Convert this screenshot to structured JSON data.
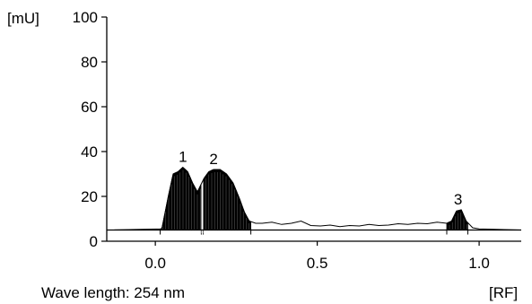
{
  "chart_data": {
    "type": "line",
    "y_unit": "[mU]",
    "x_unit": "[RF]",
    "caption": "Wave length: 254 nm",
    "xlim": [
      -0.15,
      1.13
    ],
    "ylim": [
      0,
      100
    ],
    "x_ticks": [
      {
        "value": 0.0,
        "label": "0.0"
      },
      {
        "value": 0.5,
        "label": "0.5"
      },
      {
        "value": 1.0,
        "label": "1.0"
      }
    ],
    "y_ticks": [
      {
        "value": 0,
        "label": "0"
      },
      {
        "value": 20,
        "label": "20"
      },
      {
        "value": 40,
        "label": "40"
      },
      {
        "value": 60,
        "label": "60"
      },
      {
        "value": 80,
        "label": "80"
      },
      {
        "value": 100,
        "label": "100"
      }
    ],
    "baseline": 5,
    "series": [
      {
        "x": [
          -0.15,
          0.02,
          0.04,
          0.055,
          0.07,
          0.085,
          0.1,
          0.115,
          0.13,
          0.14,
          0.15,
          0.165,
          0.18,
          0.2,
          0.22,
          0.24,
          0.26,
          0.275,
          0.29,
          0.31,
          0.33,
          0.36,
          0.39,
          0.42,
          0.45,
          0.48,
          0.51,
          0.54,
          0.57,
          0.6,
          0.63,
          0.66,
          0.69,
          0.72,
          0.75,
          0.78,
          0.81,
          0.84,
          0.87,
          0.9,
          0.915,
          0.93,
          0.945,
          0.96,
          0.98,
          1.0,
          1.13
        ],
        "y": [
          5,
          5.5,
          20,
          30,
          31,
          33,
          31,
          26,
          22,
          25,
          28,
          31,
          32,
          32,
          30,
          26,
          19,
          13,
          9,
          8,
          8,
          8.5,
          7.5,
          8,
          9,
          7,
          6.8,
          7.2,
          6.5,
          7,
          6.8,
          7.5,
          7,
          7.2,
          7.8,
          7.5,
          8,
          7.8,
          8.5,
          8,
          9,
          13.5,
          14,
          9,
          6,
          5.5,
          5
        ]
      }
    ],
    "peaks": [
      {
        "label": "1",
        "x": 0.085,
        "y": 33,
        "start": 0.015,
        "end": 0.142
      },
      {
        "label": "2",
        "x": 0.18,
        "y": 32,
        "start": 0.148,
        "end": 0.295
      },
      {
        "label": "3",
        "x": 0.935,
        "y": 14,
        "start": 0.9,
        "end": 0.965
      }
    ]
  }
}
